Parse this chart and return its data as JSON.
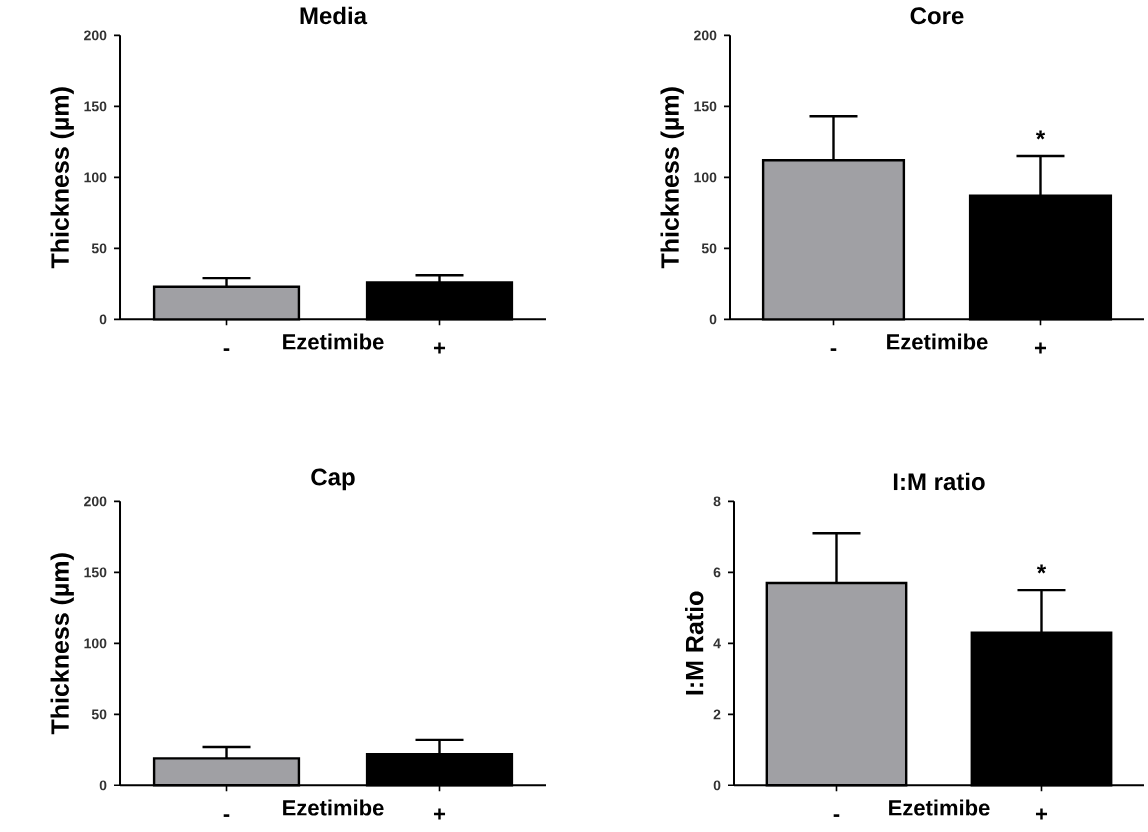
{
  "chart_data": [
    {
      "type": "bar",
      "title": "Media",
      "ylabel": "Thickness (µm)",
      "xlabel": "Ezetimibe",
      "categories": [
        "-",
        "+"
      ],
      "values": [
        23,
        26
      ],
      "errors": [
        6,
        5
      ],
      "colors": [
        "#a0a0a4",
        "#000000"
      ],
      "ylim": [
        0,
        200
      ],
      "yticks": [
        0,
        50,
        100,
        150,
        200
      ]
    },
    {
      "type": "bar",
      "title": "Core",
      "ylabel": "Thickness (µm)",
      "xlabel": "Ezetimibe",
      "categories": [
        "-",
        "+"
      ],
      "values": [
        112,
        87
      ],
      "errors": [
        31,
        28
      ],
      "colors": [
        "#a0a0a4",
        "#000000"
      ],
      "ylim": [
        0,
        200
      ],
      "yticks": [
        0,
        50,
        100,
        150,
        200
      ],
      "annotations": [
        "*"
      ]
    },
    {
      "type": "bar",
      "title": "Cap",
      "ylabel": "Thickness (µm)",
      "xlabel": "Ezetimibe",
      "categories": [
        "-",
        "+"
      ],
      "values": [
        19,
        22
      ],
      "errors": [
        8,
        10
      ],
      "colors": [
        "#a0a0a4",
        "#000000"
      ],
      "ylim": [
        0,
        200
      ],
      "yticks": [
        0,
        50,
        100,
        150,
        200
      ]
    },
    {
      "type": "bar",
      "title": "I:M ratio",
      "ylabel": "I:M Ratio",
      "xlabel": "Ezetimibe",
      "categories": [
        "-",
        "+"
      ],
      "values": [
        5.7,
        4.3
      ],
      "errors": [
        1.4,
        1.2
      ],
      "colors": [
        "#a0a0a4",
        "#000000"
      ],
      "ylim": [
        0,
        8
      ],
      "yticks": [
        0,
        2,
        4,
        6,
        8
      ],
      "annotations": [
        "*"
      ]
    }
  ]
}
